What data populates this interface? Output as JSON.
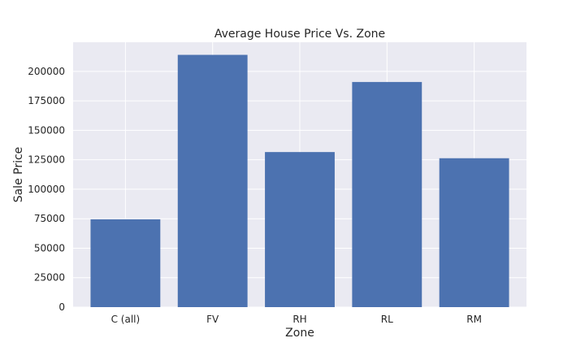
{
  "chart_data": {
    "type": "bar",
    "title": "Average House Price Vs. Zone",
    "xlabel": "Zone",
    "ylabel": "Sale Price",
    "categories": [
      "C (all)",
      "FV",
      "RH",
      "RL",
      "RM"
    ],
    "values": [
      74528,
      214014,
      131558,
      191005,
      126317
    ],
    "ylim": [
      0,
      224715
    ],
    "yticks": [
      0,
      25000,
      50000,
      75000,
      100000,
      125000,
      150000,
      175000,
      200000
    ],
    "grid": true,
    "bar_color": "#4c72b0",
    "background_color": "#eaeaf2",
    "grid_color": "#ffffff"
  }
}
